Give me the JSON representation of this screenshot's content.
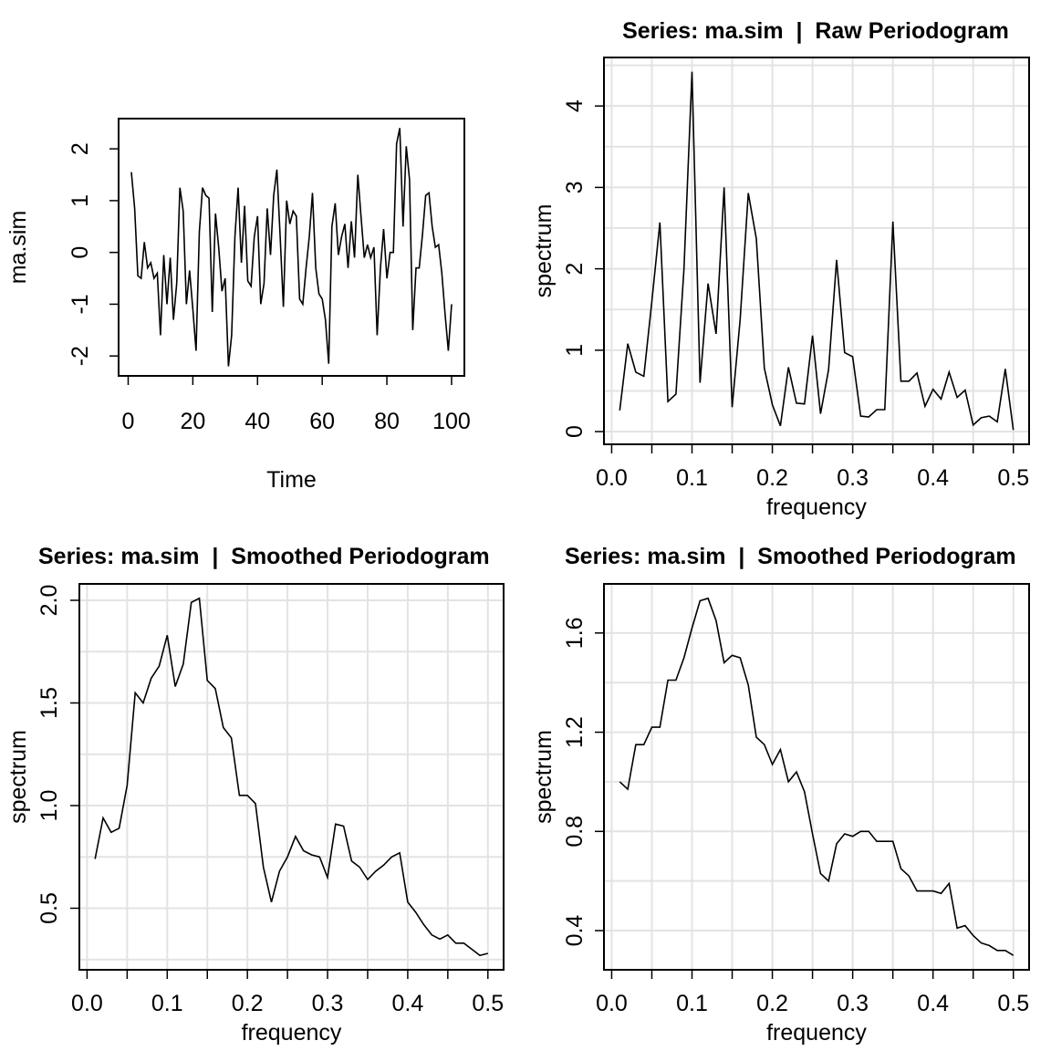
{
  "chart_data": [
    {
      "type": "line",
      "title": "",
      "xlabel": "Time",
      "ylabel": "ma.sim",
      "xlim": [
        -2.96,
        103.96
      ],
      "ylim": [
        -2.384,
        2.584
      ],
      "grid": false,
      "xticks": [
        0,
        20,
        40,
        60,
        80,
        100
      ],
      "xtick_labels": [
        "0",
        "20",
        "40",
        "60",
        "80",
        "100"
      ],
      "yticks": [
        -2,
        -1,
        0,
        1,
        2
      ],
      "ytick_labels": [
        "-2",
        "-1",
        "0",
        "1",
        "2"
      ],
      "x_start": 1,
      "x_step": 1,
      "values": [
        1.55,
        0.85,
        -0.45,
        -0.5,
        0.2,
        -0.3,
        -0.2,
        -0.5,
        -0.4,
        -1.6,
        -0.05,
        -1.0,
        -0.1,
        -1.3,
        -0.6,
        1.25,
        0.8,
        -1.0,
        -0.35,
        -1.1,
        -1.9,
        0.4,
        1.25,
        1.1,
        1.05,
        -1.15,
        0.75,
        0.1,
        -0.75,
        -0.5,
        -2.2,
        -1.6,
        0.3,
        1.25,
        -0.2,
        0.9,
        -0.55,
        -0.65,
        0.3,
        0.7,
        -1.0,
        -0.6,
        0.85,
        -0.05,
        1.1,
        1.6,
        0.3,
        -1.05,
        1.0,
        0.55,
        0.8,
        0.7,
        -0.9,
        -1.0,
        -0.3,
        0.3,
        1.15,
        -0.3,
        -0.8,
        -0.9,
        -1.3,
        -2.15,
        0.5,
        0.95,
        -0.05,
        0.3,
        0.55,
        -0.3,
        0.6,
        -0.1,
        1.5,
        0.7,
        -0.1,
        0.15,
        -0.1,
        0.1,
        -1.6,
        -0.3,
        0.45,
        -0.5,
        0.0,
        0.0,
        2.1,
        2.4,
        0.5,
        2.05,
        1.4,
        -1.5,
        -0.3,
        -0.3,
        0.35,
        1.1,
        1.15,
        0.5,
        0.1,
        0.15,
        -0.4,
        -1.2,
        -1.9,
        -1.0
      ]
    },
    {
      "type": "line",
      "title": "Series: ma.sim  |  Raw Periodogram",
      "xlabel": "frequency",
      "ylabel": "spectrum",
      "xlim": [
        -0.0096,
        0.5196
      ],
      "ylim": [
        -0.156,
        4.596
      ],
      "grid": true,
      "xticks": [
        0,
        0.1,
        0.2,
        0.3,
        0.4,
        0.5
      ],
      "xtick_labels": [
        "0.0",
        "0.1",
        "0.2",
        "0.3",
        "0.4",
        "0.5"
      ],
      "yticks": [
        0,
        1,
        2,
        3,
        4
      ],
      "ytick_labels": [
        "0",
        "1",
        "2",
        "3",
        "4"
      ],
      "ygrid_step": 0.5,
      "x_start": 0.01,
      "x_step": 0.01,
      "values": [
        0.26,
        1.08,
        0.73,
        0.68,
        1.6,
        2.57,
        0.37,
        0.46,
        2.0,
        4.42,
        0.6,
        1.82,
        1.2,
        3.0,
        0.3,
        1.38,
        2.93,
        2.37,
        0.78,
        0.33,
        0.07,
        0.79,
        0.35,
        0.34,
        1.18,
        0.22,
        0.76,
        2.11,
        0.97,
        0.92,
        0.19,
        0.18,
        0.27,
        0.27,
        2.58,
        0.62,
        0.62,
        0.72,
        0.31,
        0.52,
        0.4,
        0.73,
        0.42,
        0.51,
        0.08,
        0.17,
        0.19,
        0.12,
        0.77,
        0.02
      ]
    },
    {
      "type": "line",
      "title": "Series: ma.sim  |  Smoothed Periodogram",
      "xlabel": "frequency",
      "ylabel": "spectrum",
      "xlim": [
        -0.0096,
        0.5196
      ],
      "ylim": [
        0.2,
        2.08
      ],
      "grid": true,
      "xticks": [
        0,
        0.1,
        0.2,
        0.3,
        0.4,
        0.5
      ],
      "xtick_labels": [
        "0.0",
        "0.1",
        "0.2",
        "0.3",
        "0.4",
        "0.5"
      ],
      "yticks": [
        0.5,
        1,
        1.5,
        2
      ],
      "ytick_labels": [
        "0.5",
        "1.0",
        "1.5",
        "2.0"
      ],
      "ygrid_step": 0.25,
      "x_start": 0.01,
      "x_step": 0.01,
      "values": [
        0.74,
        0.94,
        0.87,
        0.89,
        1.1,
        1.55,
        1.5,
        1.62,
        1.68,
        1.83,
        1.58,
        1.69,
        1.99,
        2.01,
        1.61,
        1.57,
        1.38,
        1.33,
        1.05,
        1.05,
        1.01,
        0.7,
        0.53,
        0.68,
        0.75,
        0.85,
        0.78,
        0.76,
        0.75,
        0.65,
        0.91,
        0.9,
        0.73,
        0.7,
        0.64,
        0.68,
        0.71,
        0.75,
        0.77,
        0.53,
        0.48,
        0.42,
        0.37,
        0.35,
        0.37,
        0.33,
        0.33,
        0.3,
        0.27,
        0.28
      ]
    },
    {
      "type": "line",
      "title": "Series: ma.sim  |  Smoothed Periodogram",
      "xlabel": "frequency",
      "ylabel": "spectrum",
      "xlim": [
        -0.0096,
        0.5196
      ],
      "ylim": [
        0.242,
        1.798
      ],
      "grid": true,
      "xticks": [
        0,
        0.1,
        0.2,
        0.3,
        0.4,
        0.5
      ],
      "xtick_labels": [
        "0.0",
        "0.1",
        "0.2",
        "0.3",
        "0.4",
        "0.5"
      ],
      "yticks": [
        0.4,
        0.8,
        1.2,
        1.6
      ],
      "ytick_labels": [
        "0.4",
        "0.8",
        "1.2",
        "1.6"
      ],
      "ygrid_step": 0.2,
      "x_start": 0.01,
      "x_step": 0.01,
      "values": [
        1.0,
        0.97,
        1.15,
        1.15,
        1.22,
        1.22,
        1.41,
        1.41,
        1.5,
        1.62,
        1.73,
        1.74,
        1.65,
        1.48,
        1.51,
        1.5,
        1.39,
        1.18,
        1.15,
        1.07,
        1.13,
        1.0,
        1.04,
        0.96,
        0.79,
        0.63,
        0.6,
        0.75,
        0.79,
        0.78,
        0.8,
        0.8,
        0.76,
        0.76,
        0.76,
        0.65,
        0.62,
        0.56,
        0.56,
        0.56,
        0.55,
        0.59,
        0.41,
        0.42,
        0.38,
        0.35,
        0.34,
        0.32,
        0.32,
        0.3
      ]
    }
  ]
}
